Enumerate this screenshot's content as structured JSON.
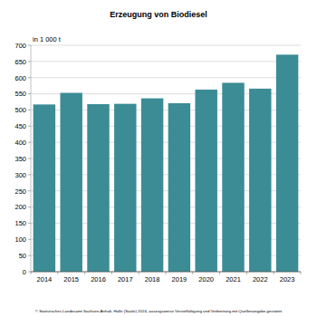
{
  "chart_data": {
    "type": "bar",
    "title": "Erzeugung von Biodiesel",
    "y_label": "in 1 000 t",
    "annotation": "© Statistisches Landesamt Sachsen-Anhalt, Halle (Saale) 2024, auszugsweise Vervielfältigung und Verbreitung mit Quellenangabe gestattet",
    "categories": [
      "2014",
      "2015",
      "2016",
      "2017",
      "2018",
      "2019",
      "2020",
      "2021",
      "2022",
      "2023"
    ],
    "values": [
      517,
      553,
      518,
      519,
      536,
      521,
      563,
      584,
      566,
      671
    ],
    "color": "#3b8c94",
    "ylim": [
      0,
      700
    ],
    "yticks": [
      0,
      50,
      100,
      150,
      200,
      250,
      300,
      350,
      400,
      450,
      500,
      550,
      600,
      650,
      700
    ],
    "grid": true
  }
}
